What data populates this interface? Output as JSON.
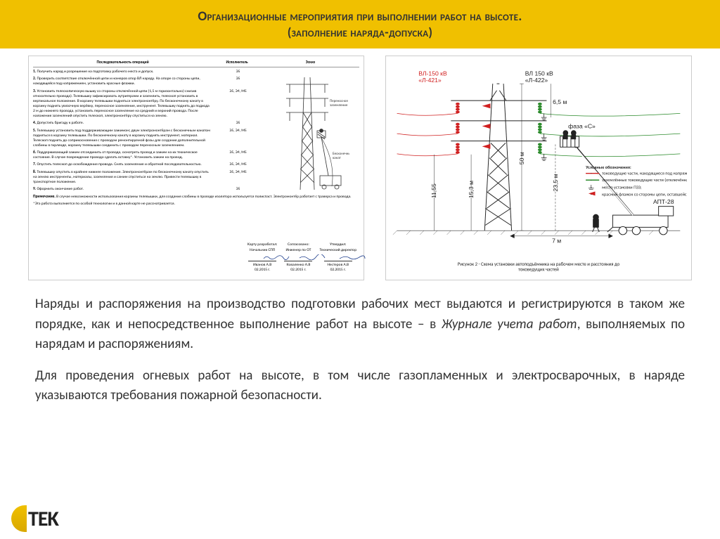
{
  "header": {
    "title_line1": "Организационные мероприятия при выполнении работ на высоте.",
    "title_line2": "(заполнение наряда-допуска)"
  },
  "left_doc": {
    "headers": {
      "col1": "Последовательность операций",
      "col2": "Исполнитель",
      "col3": "Эскиз"
    },
    "rows": [
      {
        "num": "1.",
        "text": "Получить наряд и разрешение на подготовку рабочего места и допуск.",
        "exec": "Э5"
      },
      {
        "num": "2.",
        "text": "Проверить соответствие отключённой цепи и номеров опор ВЛ наряду. На опоре со стороны цепи, находящейся под напряжением, установить красные флажки.",
        "exec": "Э5"
      },
      {
        "num": "3.",
        "text": "Установить телескопическую вышку со стороны отключённой цепи (1,5 м горизонтально) снизив относительно провода). Телевышку зафиксировать аутригерами и заземлить, телескоп установить в вертикальное положение. В корзину телевышки подняться электромонтёру. По бесконечному канату в корзину поднять увязочную верёвку, переносное заземление, инструмент. Телевышку поднять до подхода 2 м до нижнего провода, установить переносное заземление на средний и верхний провода. После наложения заземлений опустить телескоп, электромонтёру спуститься на землю.",
        "exec": "Э5, Э4, М5"
      },
      {
        "num": "4.",
        "text": "Допустить бригаду к работе.",
        "exec": "Э5"
      },
      {
        "num": "5.",
        "text": "Телевышку установить под поддерживающим зажимом; двум электромонтёрам с бесконечным канатом подняться в корзину телевышки. По бесконечному канату в корзину поднять инструмент, материал. Телескоп поднять до соприкосновения с проводом ремонтируемой фазы для создания дополнительной слабины в гирлянде, корзину телевышки соединить с проводом переносным заземлением.",
        "exec": "Э5, Э4, М5"
      },
      {
        "num": "6.",
        "text": "Поддерживающий зажим отсоединить от провода, осмотреть провод и зажим на их техническое состояние. В случае повреждения провода сделать вставку*. Установить зажим на провод.",
        "exec": "Э5, Э4, М5"
      },
      {
        "num": "7.",
        "text": "Опустить телескоп до освобождения провода. Снять заземление и обратной последовательностью.",
        "exec": "Э5, Э4, М5"
      },
      {
        "num": "8.",
        "text": "Телевышку опустить в крайнее нижнее положение. Электромонтёрам по бесконечному канату опустить на землю инструменты, материалы, заземления и самим спуститься на землю. Привести телевышку в транспортное положение.",
        "exec": "Э5, Э4, М5"
      },
      {
        "num": "9.",
        "text": "Оформить окончание работ.",
        "exec": "Э5"
      }
    ],
    "note_label": "Примечание.",
    "note_text": "В случае невозможности использования корзины телевышки, для создания слабины в проводе изолятора используется полиспаст. Электромонтёр работает с траверса и провода.",
    "footnote": "*Эта работа выполняется по особой технологии и в данной карте не рассматривается.",
    "sketch_labels": {
      "anchor": "Переносное заземление",
      "rope": "Бесконечный канат"
    },
    "signatures": {
      "col1": {
        "h": "Карту разработал:",
        "role": "Начальник СПП",
        "name": "Иванов А.В",
        "date": "02.2015 г."
      },
      "col2": {
        "h": "Согласовано:",
        "role": "Инженер по ОТ",
        "name": "Коваленко А.В",
        "date": "02.2015 г."
      },
      "col3": {
        "h": "Утвердил:",
        "role": "Технический директор",
        "name": "Нестеров А.В",
        "date": "02.2015 г."
      }
    }
  },
  "right_diagram": {
    "labels": {
      "line_red": "ВЛ-150 кВ «Л-421»",
      "line_black": "ВЛ 150 кВ «Л-422»",
      "phase": "фаза «С»",
      "truck": "АПТ-28",
      "h_6_5": "6,5 м",
      "h_50": "50 м",
      "h_23_5": "23,5 м",
      "h_15_3": "15,3 м",
      "h_11_55": "11,55",
      "d_7": "7 м"
    },
    "legend_title": "Условные обозначения:",
    "legend_items": [
      "токоведущие части, находящиеся под напряжением;",
      "заземлённые токоведущие части (отключённая цепь);",
      "место установки ПЗЗ;",
      "красный флажок со стороны цепи, оставшейся под напряжением."
    ],
    "caption": "Рисунок 2 - Схема установки автоподъёмника на рабочем месте и расстояния до токоведущих частей"
  },
  "body": {
    "p1_a": "Наряды и распоряжения на производство подготовки рабочих мест выдаются и регистрируются в таком же порядке, как и непосредственное выполнение работ на высоте – в ",
    "p1_b": "Журнале учета работ",
    "p1_c": ", выполняемых по нарядам и распоряжениям.",
    "p2": "Для проведения огневых работ на высоте, в том числе газопламенных и электросварочных, в наряде указываются требования пожарной безопасности."
  },
  "logo": {
    "brand": "TEK"
  },
  "colors": {
    "header_bg": "#f0c000",
    "text": "#333333",
    "red": "#d02020",
    "green": "#2a8a2a",
    "black": "#222222"
  }
}
